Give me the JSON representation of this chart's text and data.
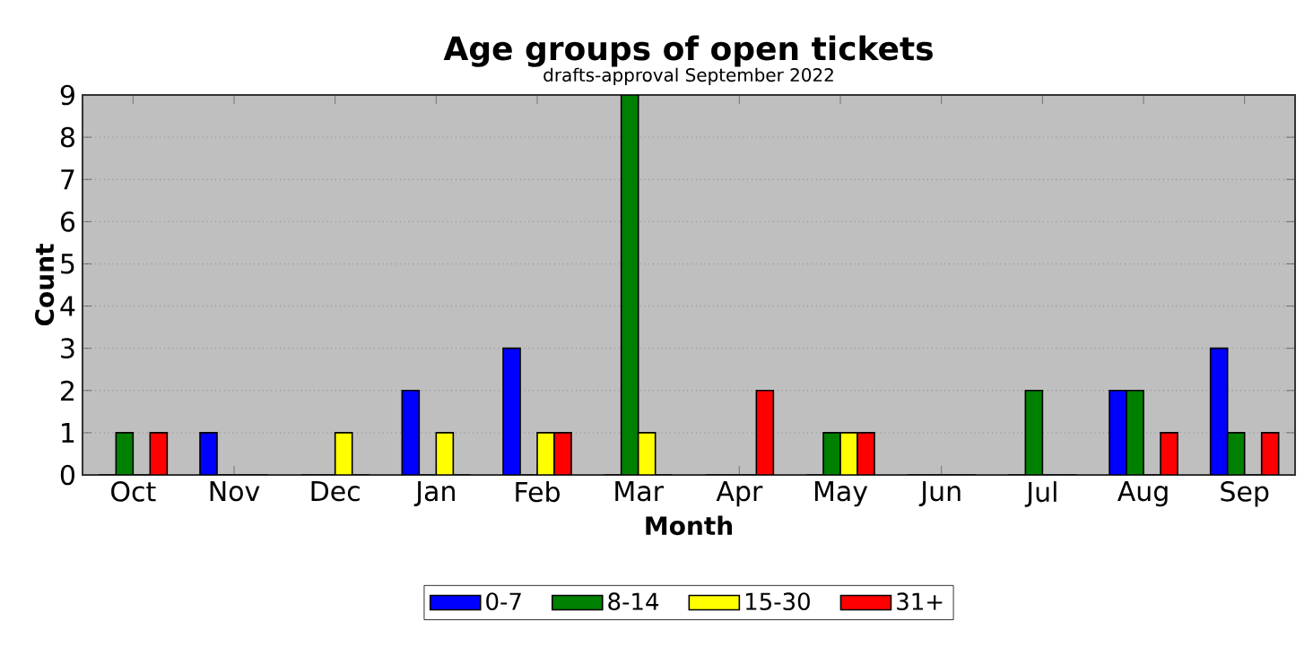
{
  "chart_data": {
    "type": "bar",
    "title": "Age groups of open tickets",
    "subtitle": "drafts-approval September 2022",
    "xlabel": "Month",
    "ylabel": "Count",
    "categories": [
      "Oct",
      "Nov",
      "Dec",
      "Jan",
      "Feb",
      "Mar",
      "Apr",
      "May",
      "Jun",
      "Jul",
      "Aug",
      "Sep"
    ],
    "series": [
      {
        "name": "0-7",
        "color": "#0000ff",
        "values": [
          0,
          1,
          0,
          2,
          3,
          0,
          0,
          0,
          0,
          0,
          2,
          3
        ]
      },
      {
        "name": "8-14",
        "color": "#008000",
        "values": [
          1,
          0,
          0,
          0,
          0,
          9,
          0,
          1,
          0,
          2,
          2,
          1
        ]
      },
      {
        "name": "15-30",
        "color": "#ffff00",
        "values": [
          0,
          0,
          1,
          1,
          1,
          1,
          0,
          1,
          0,
          0,
          0,
          0
        ]
      },
      {
        "name": "31+",
        "color": "#ff0000",
        "values": [
          1,
          0,
          0,
          0,
          1,
          0,
          2,
          1,
          0,
          0,
          1,
          1
        ]
      }
    ],
    "ylim": [
      0,
      9
    ],
    "yticks": [
      0,
      1,
      2,
      3,
      4,
      5,
      6,
      7,
      8,
      9
    ],
    "grid": "y",
    "legend": "bottom"
  }
}
